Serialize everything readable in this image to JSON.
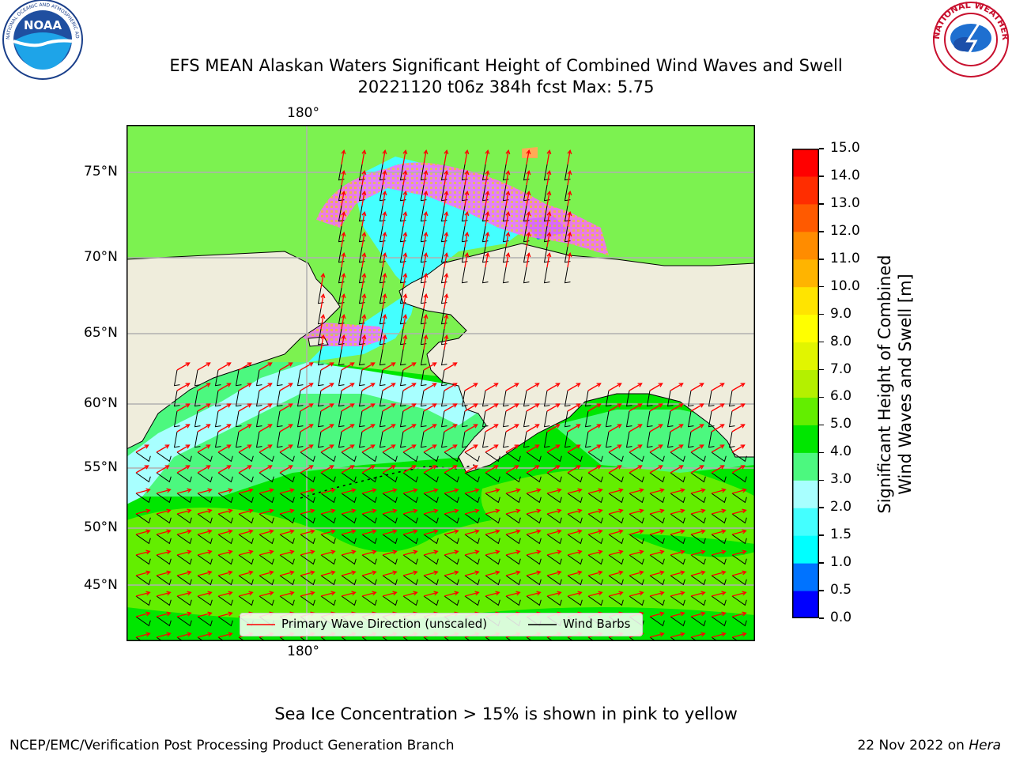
{
  "header": {
    "title_line1": "EFS MEAN Alaskan Waters Significant Height of Combined Wind Waves and Swell",
    "title_line2": "20221120 t06z 384h fcst   Max: 5.75"
  },
  "map": {
    "lon_label_top": "180°",
    "lon_label_bottom": "180°",
    "lat_labels": [
      "75°N",
      "70°N",
      "65°N",
      "60°N",
      "55°N",
      "50°N",
      "45°N"
    ],
    "legend": {
      "wave_direction": "Primary Wave Direction (unscaled)",
      "wind_barbs": "Wind Barbs"
    },
    "colors": {
      "land": "#efeddc",
      "wave_arrow": "#ff0000",
      "wind_barb": "#000000",
      "grid": "#b0b0b0"
    }
  },
  "colorbar": {
    "title_line1": "Significant Height of Combined",
    "title_line2": "Wind Waves and Swell [m]",
    "ticks": [
      "0.0",
      "0.5",
      "1.0",
      "1.5",
      "2.0",
      "3.0",
      "4.0",
      "5.0",
      "6.0",
      "7.0",
      "8.0",
      "9.0",
      "10.0",
      "11.0",
      "12.0",
      "13.0",
      "14.0",
      "15.0"
    ],
    "colors": [
      "#0000ff",
      "#0073ff",
      "#00ffff",
      "#44ffff",
      "#a8ffff",
      "#4cf87f",
      "#00e600",
      "#63ee00",
      "#b4f000",
      "#e1f500",
      "#ffff00",
      "#ffe400",
      "#ffb400",
      "#ff8c00",
      "#ff5a00",
      "#ff2d00",
      "#ff0000"
    ]
  },
  "footer": {
    "ice_note": "Sea Ice Concentration > 15% is shown in pink to yellow",
    "branch": "NCEP/EMC/Verification Post Processing Product Generation Branch",
    "date": "22 Nov 2022 on ",
    "machine": "Hera"
  },
  "logos": {
    "noaa_text": "NOAA",
    "noaa_ring": "NATIONAL OCEANIC AND ATMOSPHERIC ADMINISTRATION",
    "noaa_ring_bottom": "U.S. DEPARTMENT OF COMMERCE",
    "nws_ring": "NATIONAL WEATHER SERVICE"
  }
}
